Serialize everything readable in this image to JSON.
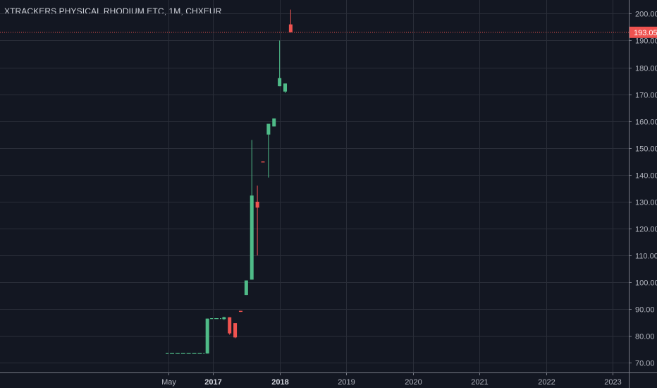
{
  "chart_data": {
    "type": "candlestick",
    "title": "XTRACKERS PHYSICAL RHODIUM ETC, 1M, CHXEUR",
    "ylim": [
      67.5,
      203.5
    ],
    "y_ticks": [
      70,
      80,
      90,
      100,
      110,
      120,
      130,
      140,
      150,
      160,
      170,
      180,
      190,
      200
    ],
    "y_tick_labels": [
      "70.00",
      "80.00",
      "90.00",
      "100.00",
      "110.00",
      "120.00",
      "130.00",
      "140.00",
      "150.00",
      "160.00",
      "170.00",
      "180.00",
      "190.00",
      "200.00"
    ],
    "x_ticks": [
      {
        "month": 4,
        "label": "May",
        "bold": false
      },
      {
        "month": 12,
        "label": "2017",
        "bold": true
      },
      {
        "month": 24,
        "label": "2018",
        "bold": true
      },
      {
        "month": 36,
        "label": "2019",
        "bold": false
      },
      {
        "month": 48,
        "label": "2020",
        "bold": false
      },
      {
        "month": 60,
        "label": "2021",
        "bold": false
      },
      {
        "month": 72,
        "label": "2022",
        "bold": false
      },
      {
        "month": 84,
        "label": "2023",
        "bold": false
      }
    ],
    "last_price": 193.05,
    "last_price_label": "193.05",
    "colors": {
      "up": "#26a69a",
      "up_body": "#4fbb88",
      "down": "#ef5350",
      "background": "#131722",
      "grid": "#2a2e39",
      "price_line": "#ef5350"
    },
    "candles": [
      {
        "date": "2016-05",
        "open": 73.5,
        "high": 73.5,
        "low": 73.5,
        "close": 73.5
      },
      {
        "date": "2016-06",
        "open": 73.5,
        "high": 73.5,
        "low": 73.5,
        "close": 73.5
      },
      {
        "date": "2016-07",
        "open": 73.5,
        "high": 73.5,
        "low": 73.5,
        "close": 73.5
      },
      {
        "date": "2016-08",
        "open": 73.5,
        "high": 73.5,
        "low": 73.5,
        "close": 73.5
      },
      {
        "date": "2016-09",
        "open": 73.5,
        "high": 73.5,
        "low": 73.5,
        "close": 73.5
      },
      {
        "date": "2016-10",
        "open": 73.5,
        "high": 73.5,
        "low": 73.5,
        "close": 73.5
      },
      {
        "date": "2016-11",
        "open": 73.5,
        "high": 73.5,
        "low": 73.5,
        "close": 73.5
      },
      {
        "date": "2016-12",
        "open": 73.5,
        "high": 86.5,
        "low": 73.5,
        "close": 86.5
      },
      {
        "date": "2017-01",
        "open": 86.5,
        "high": 86.5,
        "low": 86.5,
        "close": 86.5
      },
      {
        "date": "2017-02",
        "open": 86.5,
        "high": 86.5,
        "low": 86.5,
        "close": 86.5
      },
      {
        "date": "2017-03",
        "open": 86.3,
        "high": 87.2,
        "low": 86.0,
        "close": 87.0
      },
      {
        "date": "2017-04",
        "open": 87.0,
        "high": 87.0,
        "low": 80.5,
        "close": 81.0
      },
      {
        "date": "2017-05",
        "open": 84.8,
        "high": 84.8,
        "low": 79.2,
        "close": 79.5
      },
      {
        "date": "2017-06",
        "open": 89.4,
        "high": 89.4,
        "low": 89.0,
        "close": 89.0
      },
      {
        "date": "2017-07",
        "open": 95.3,
        "high": 100.7,
        "low": 95.3,
        "close": 100.7
      },
      {
        "date": "2017-08",
        "open": 101.0,
        "high": 153.0,
        "low": 101.0,
        "close": 132.3
      },
      {
        "date": "2017-09",
        "open": 130.0,
        "high": 136.0,
        "low": 110.0,
        "close": 127.8
      },
      {
        "date": "2017-10",
        "open": 145.0,
        "high": 145.0,
        "low": 144.7,
        "close": 144.7
      },
      {
        "date": "2017-11",
        "open": 155.0,
        "high": 159.0,
        "low": 139.0,
        "close": 159.0
      },
      {
        "date": "2017-12",
        "open": 158.0,
        "high": 161.0,
        "low": 158.0,
        "close": 161.0
      },
      {
        "date": "2018-01",
        "open": 173.0,
        "high": 190.0,
        "low": 173.0,
        "close": 176.0
      },
      {
        "date": "2018-02",
        "open": 171.0,
        "high": 174.0,
        "low": 170.5,
        "close": 174.0
      },
      {
        "date": "2018-03",
        "open": 196.0,
        "high": 201.5,
        "low": 193.05,
        "close": 193.05
      }
    ]
  }
}
